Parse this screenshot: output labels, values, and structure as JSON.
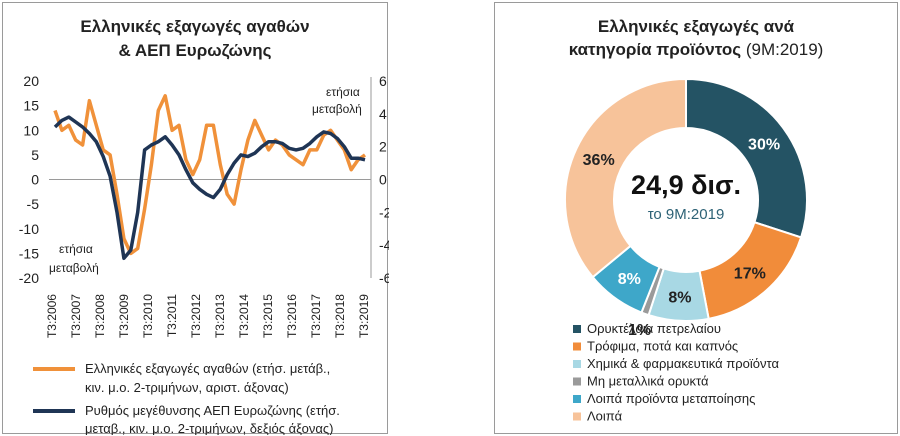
{
  "left_chart": {
    "title_line1": "Ελληνικές εξαγωγές αγαθών",
    "title_line2": "& ΑΕΠ Ευρωζώνης",
    "left_axis_note_line1": "ετήσια",
    "left_axis_note_line2": "μεταβολή",
    "right_axis_note_line1": "ετήσια",
    "right_axis_note_line2": "μεταβολή",
    "left_ticks": [
      "20",
      "15",
      "10",
      "5",
      "0",
      "-5",
      "-10",
      "-15",
      "-20"
    ],
    "right_ticks": [
      "6",
      "4",
      "2",
      "0",
      "-2",
      "-4",
      "-6"
    ],
    "x_ticks": [
      "Τ3:2006",
      "Τ3:2007",
      "Τ3:2008",
      "Τ3:2009",
      "Τ3:2010",
      "Τ3:2011",
      "Τ3:2012",
      "Τ3:2013",
      "Τ3:2014",
      "Τ3:2015",
      "Τ3:2016",
      "Τ3:2017",
      "Τ3:2018",
      "Τ3:2019"
    ],
    "legend": [
      {
        "line1": "Ελληνικές εξαγωγές αγαθών (ετήσ. μετάβ.,",
        "line2": "κιν. μ.ο. 2-τριμήνων, αριστ. άξονας)",
        "color": "#f0913a"
      },
      {
        "line1": "Ρυθμός μεγέθυνσης ΑΕΠ Ευρωζώνης (ετήσ.",
        "line2": "μεταβ., κιν. μ.ο. 2-τριμήνων, δεξιός άξονας)",
        "color": "#1f3555"
      }
    ]
  },
  "chart_data": [
    {
      "type": "line",
      "x_start": "Τ3:2006",
      "x_end": "Τ3:2019",
      "series": [
        {
          "name": "Ελληνικές εξαγωγές αγαθών (ετήσ. μετάβ., κιν. μ.ο. 2-τριμήνων, αριστ. άξονας)",
          "axis": "left",
          "ylim": [
            -20,
            20
          ],
          "values": [
            14,
            10,
            11,
            8,
            7,
            16,
            11,
            6,
            5,
            -3,
            -12,
            -15,
            -14,
            -6,
            3,
            14,
            17,
            10,
            11,
            4,
            1,
            4,
            11,
            11,
            3,
            -3,
            -5,
            2,
            8,
            12,
            9,
            6,
            8,
            7,
            5,
            4,
            3,
            6,
            6,
            9,
            10,
            8,
            6,
            2,
            4,
            5
          ]
        },
        {
          "name": "Ρυθμός μεγέθυνσης ΑΕΠ Ευρωζώνης (ετήσ. μεταβ., κιν. μ.ο. 2-τριμήνων, δεξιός άξονας)",
          "axis": "right",
          "ylim": [
            -6,
            6
          ],
          "values": [
            3.2,
            3.6,
            3.8,
            3.5,
            3.2,
            2.8,
            2.3,
            1.4,
            0.2,
            -2.0,
            -4.8,
            -4.3,
            -2.0,
            1.8,
            2.1,
            2.3,
            2.6,
            2.1,
            1.5,
            0.6,
            -0.2,
            -0.6,
            -0.9,
            -1.1,
            -0.6,
            0.3,
            1.0,
            1.5,
            1.4,
            1.6,
            2.0,
            2.3,
            2.3,
            2.2,
            1.9,
            1.8,
            1.9,
            2.2,
            2.6,
            2.9,
            2.8,
            2.5,
            2.0,
            1.3,
            1.3,
            1.2
          ]
        }
      ]
    },
    {
      "type": "pie",
      "title": "Ελληνικές εξαγωγές ανά κατηγορία προϊόντος (9M:2019)",
      "center_value": "24,9 δισ.",
      "center_sub": "το 9M:2019",
      "labels": [
        "Ορυκτέλαια πετρελαίου",
        "Τρόφιμα, ποτά και καπνός",
        "Χημικά & φαρμακευτικά προϊόντα",
        "Μη μεταλλικά ορυκτά",
        "Λοιπά προϊόντα μεταποίησης",
        "Λοιπά"
      ],
      "values": [
        30,
        17,
        8,
        1,
        8,
        36
      ],
      "value_labels": [
        "30%",
        "17%",
        "8%",
        "1%",
        "8%",
        "36%"
      ],
      "colors": [
        "#245364",
        "#f18c3a",
        "#a8d8e4",
        "#9a9a9a",
        "#3ea7c9",
        "#f7c39a"
      ],
      "label_colors": [
        "#ffffff",
        "#222222",
        "#222222",
        "#222222",
        "#ffffff",
        "#222222"
      ]
    }
  ],
  "right_chart": {
    "title_line1": "Ελληνικές εξαγωγές ανά",
    "title_line2_bold": "κατηγορία προϊόντος",
    "title_line2_normal": " (9M:2019)"
  }
}
